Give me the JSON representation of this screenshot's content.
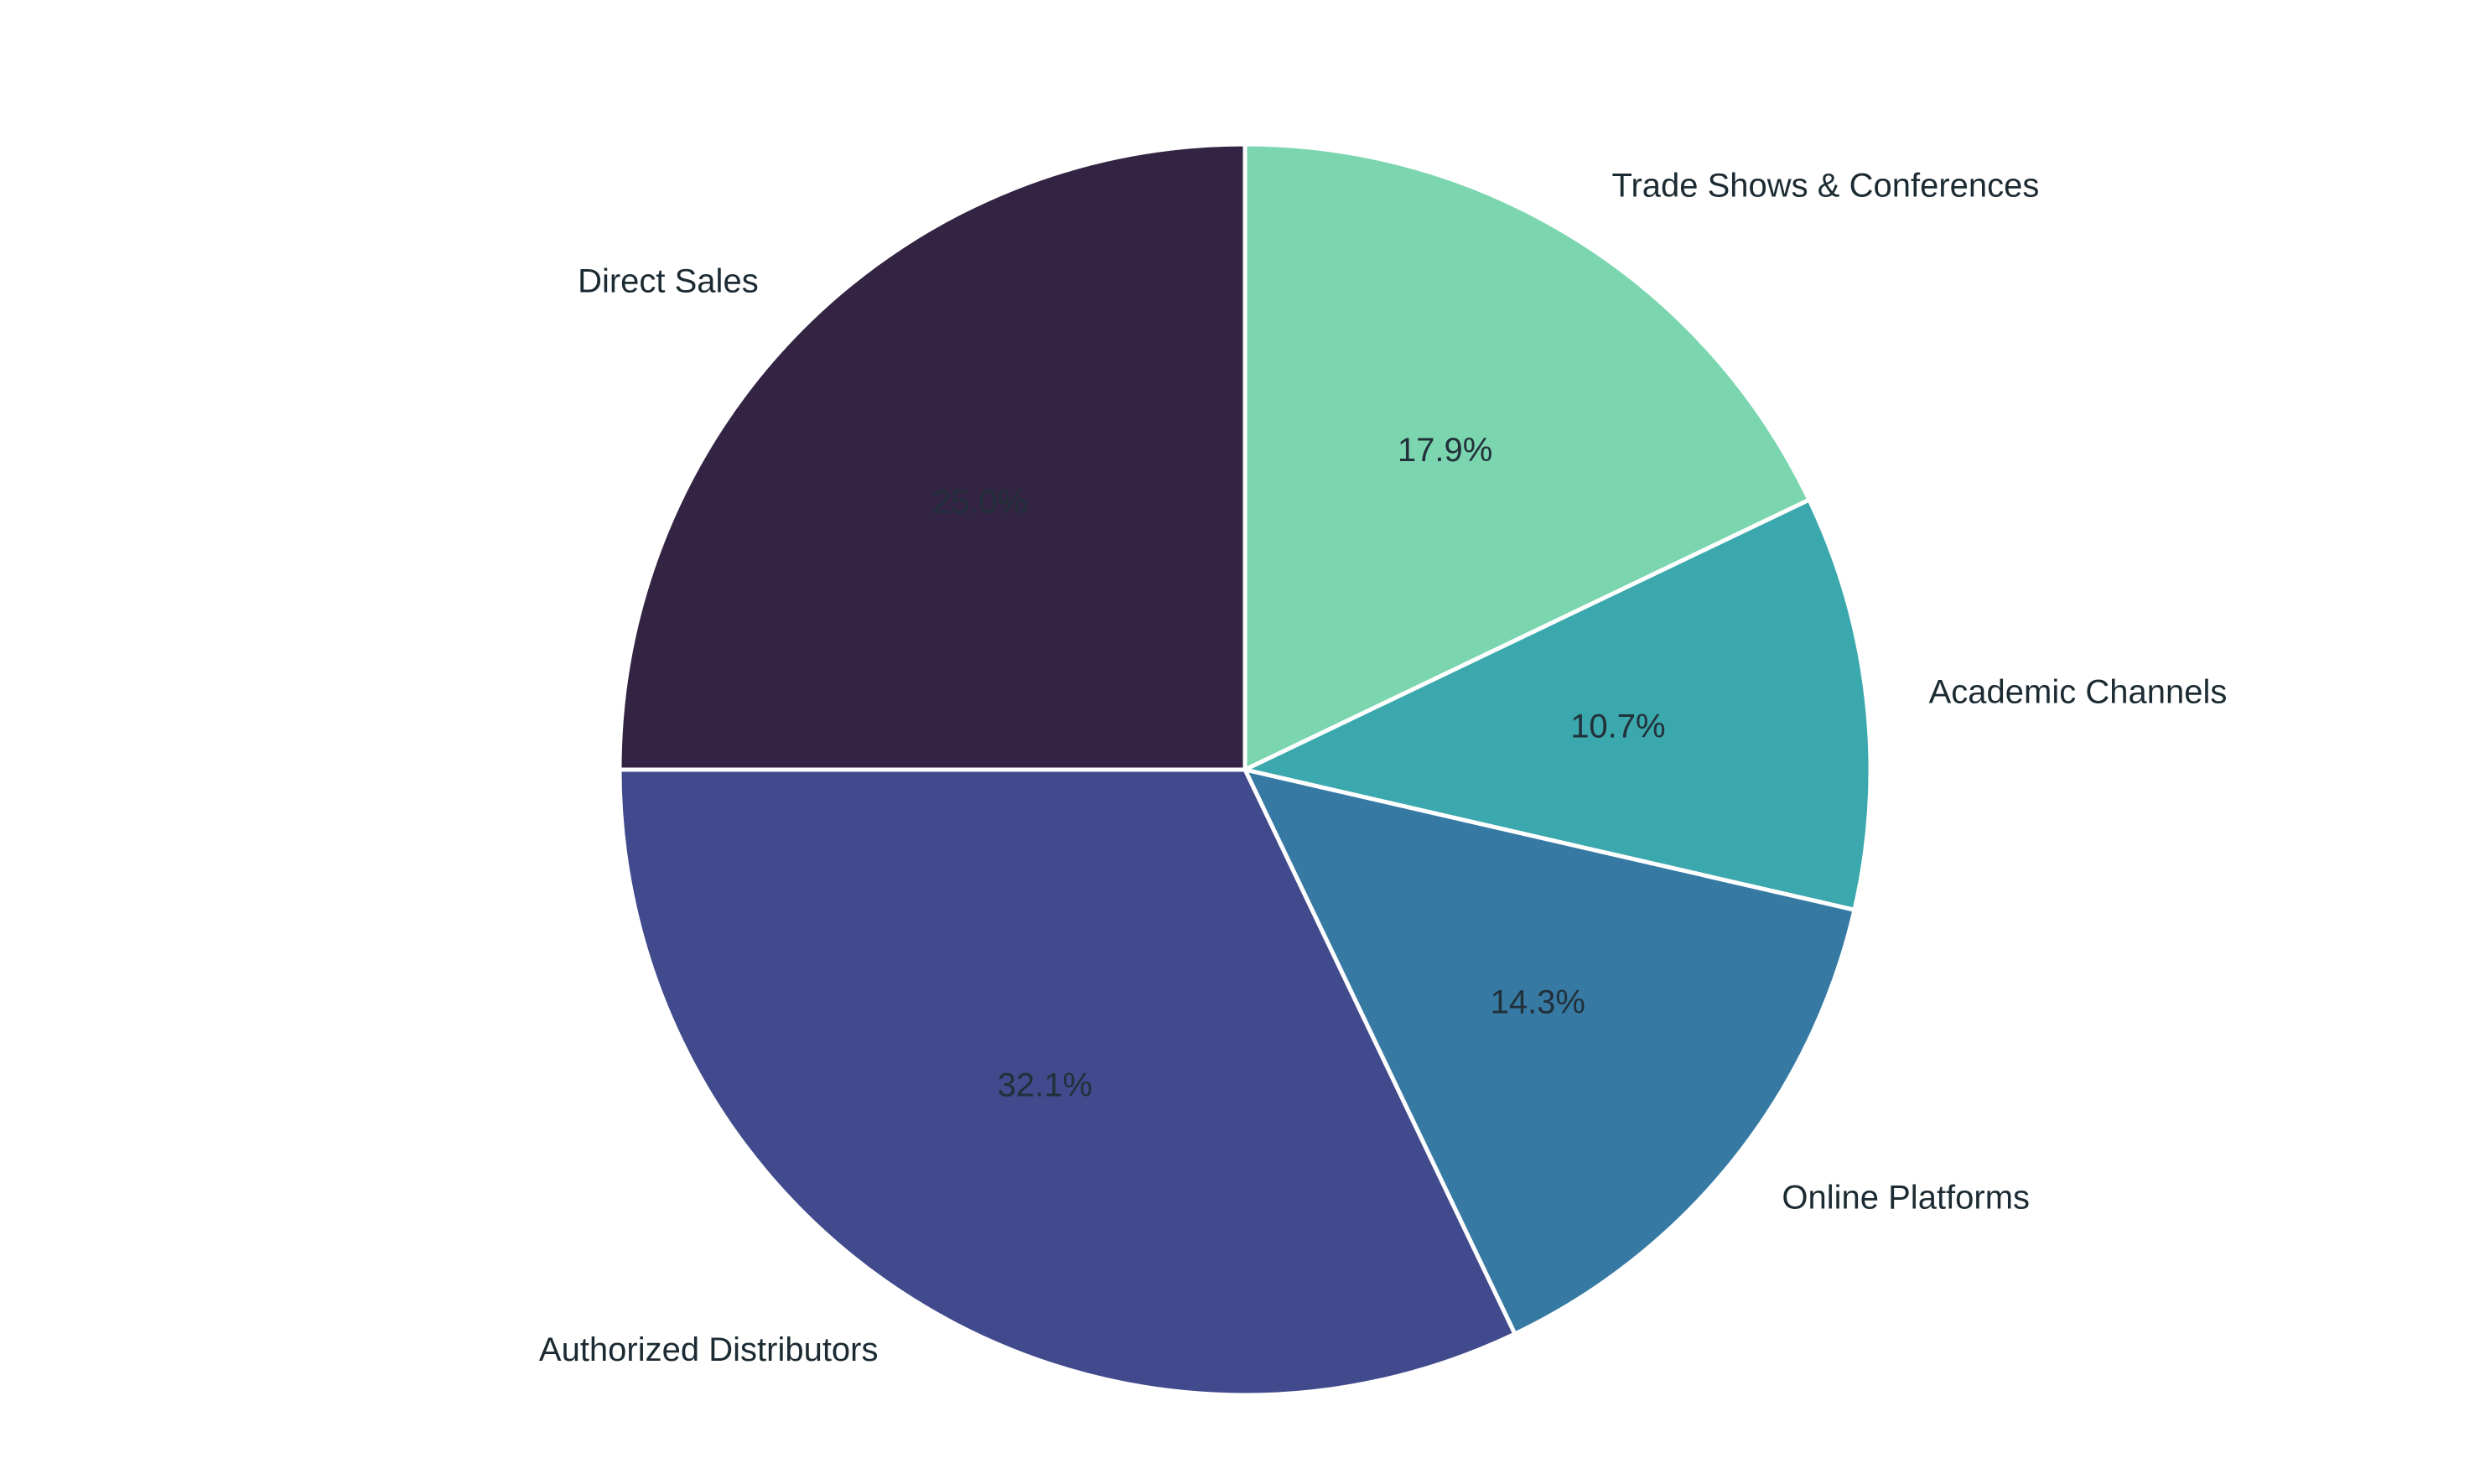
{
  "chart_data": {
    "type": "pie",
    "title": "",
    "start_angle": "top, clockwise",
    "categories": [
      "Trade Shows & Conferences",
      "Academic Channels",
      "Online Platforms",
      "Authorized Distributors",
      "Direct Sales"
    ],
    "values": [
      17.9,
      10.7,
      14.3,
      32.1,
      25.0
    ],
    "value_labels": [
      "17.9%",
      "10.7%",
      "14.3%",
      "32.1%",
      "25.0%"
    ],
    "colors": [
      "#7bd6b0",
      "#3aa8ac",
      "#367aa4",
      "#414a8c",
      "#342444"
    ],
    "legend": "none (labels placed outside slices)"
  }
}
